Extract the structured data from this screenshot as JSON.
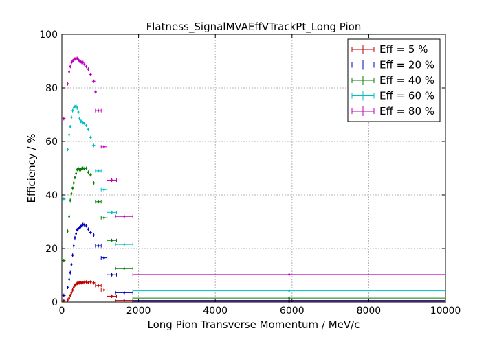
{
  "chart_data": {
    "type": "scatter",
    "title": "Flatness_SignalMVAEffVTrackPt_Long Pion",
    "xlabel": "Long Pion Transverse Momentum / MeV/c",
    "ylabel": "Efficiency / %",
    "xlim": [
      0,
      10000
    ],
    "ylim": [
      0,
      100
    ],
    "xticks": [
      "0",
      "2000",
      "4000",
      "6000",
      "8000",
      "10000"
    ],
    "yticks": [
      "0",
      "20",
      "40",
      "60",
      "80",
      "100"
    ],
    "grid": true,
    "legend_position": "top-right",
    "series": [
      {
        "name": "Eff = 5 %",
        "color": "#bf0000",
        "points": [
          {
            "x": 50,
            "y": 0.5,
            "xerr": 50
          },
          {
            "x": 150,
            "y": 0.8,
            "xerr": 25
          },
          {
            "x": 190,
            "y": 1.5,
            "xerr": 15
          },
          {
            "x": 220,
            "y": 2.5,
            "xerr": 15
          },
          {
            "x": 250,
            "y": 3.5,
            "xerr": 15
          },
          {
            "x": 280,
            "y": 4.5,
            "xerr": 15
          },
          {
            "x": 310,
            "y": 5.5,
            "xerr": 15
          },
          {
            "x": 340,
            "y": 6.3,
            "xerr": 15
          },
          {
            "x": 370,
            "y": 6.8,
            "xerr": 15
          },
          {
            "x": 400,
            "y": 7.0,
            "xerr": 15
          },
          {
            "x": 430,
            "y": 7.2,
            "xerr": 15
          },
          {
            "x": 460,
            "y": 7.2,
            "xerr": 15
          },
          {
            "x": 490,
            "y": 7.3,
            "xerr": 15
          },
          {
            "x": 520,
            "y": 7.2,
            "xerr": 15
          },
          {
            "x": 550,
            "y": 7.3,
            "xerr": 15
          },
          {
            "x": 590,
            "y": 7.4,
            "xerr": 25
          },
          {
            "x": 640,
            "y": 7.5,
            "xerr": 25
          },
          {
            "x": 690,
            "y": 7.3,
            "xerr": 25
          },
          {
            "x": 750,
            "y": 7.5,
            "xerr": 35
          },
          {
            "x": 830,
            "y": 7.2,
            "xerr": 45
          },
          {
            "x": 950,
            "y": 6.2,
            "xerr": 75
          },
          {
            "x": 1100,
            "y": 4.5,
            "xerr": 75
          },
          {
            "x": 1300,
            "y": 2.2,
            "xerr": 125
          },
          {
            "x": 1625,
            "y": 0.6,
            "xerr": 225
          },
          {
            "x": 5925,
            "y": 0.1,
            "xerr": 4075
          }
        ]
      },
      {
        "name": "Eff = 20 %",
        "color": "#0000bf",
        "points": [
          {
            "x": 50,
            "y": 2.5,
            "xerr": 50
          },
          {
            "x": 150,
            "y": 5.5,
            "xerr": 25
          },
          {
            "x": 190,
            "y": 8.5,
            "xerr": 15
          },
          {
            "x": 220,
            "y": 11,
            "xerr": 15
          },
          {
            "x": 250,
            "y": 14,
            "xerr": 15
          },
          {
            "x": 280,
            "y": 17.5,
            "xerr": 15
          },
          {
            "x": 310,
            "y": 21,
            "xerr": 15
          },
          {
            "x": 340,
            "y": 24,
            "xerr": 15
          },
          {
            "x": 370,
            "y": 25.5,
            "xerr": 15
          },
          {
            "x": 400,
            "y": 27,
            "xerr": 15
          },
          {
            "x": 430,
            "y": 27.5,
            "xerr": 15
          },
          {
            "x": 460,
            "y": 27.8,
            "xerr": 15
          },
          {
            "x": 490,
            "y": 28.2,
            "xerr": 15
          },
          {
            "x": 520,
            "y": 28.5,
            "xerr": 15
          },
          {
            "x": 550,
            "y": 29.0,
            "xerr": 15
          },
          {
            "x": 590,
            "y": 28.8,
            "xerr": 25
          },
          {
            "x": 640,
            "y": 28.5,
            "xerr": 25
          },
          {
            "x": 690,
            "y": 27.2,
            "xerr": 25
          },
          {
            "x": 750,
            "y": 26.0,
            "xerr": 35
          },
          {
            "x": 830,
            "y": 25.0,
            "xerr": 45
          },
          {
            "x": 950,
            "y": 21.0,
            "xerr": 75
          },
          {
            "x": 1100,
            "y": 16.5,
            "xerr": 75
          },
          {
            "x": 1300,
            "y": 10.2,
            "xerr": 125
          },
          {
            "x": 1625,
            "y": 3.5,
            "xerr": 225
          },
          {
            "x": 5925,
            "y": 0.6,
            "xerr": 4075
          }
        ]
      },
      {
        "name": "Eff = 40 %",
        "color": "#007f00",
        "points": [
          {
            "x": 50,
            "y": 15.5,
            "xerr": 50
          },
          {
            "x": 150,
            "y": 26.5,
            "xerr": 25
          },
          {
            "x": 190,
            "y": 32,
            "xerr": 15
          },
          {
            "x": 220,
            "y": 38,
            "xerr": 15
          },
          {
            "x": 250,
            "y": 40.5,
            "xerr": 15
          },
          {
            "x": 280,
            "y": 42.5,
            "xerr": 15
          },
          {
            "x": 310,
            "y": 44.5,
            "xerr": 15
          },
          {
            "x": 340,
            "y": 46.5,
            "xerr": 15
          },
          {
            "x": 370,
            "y": 48,
            "xerr": 15
          },
          {
            "x": 400,
            "y": 49.5,
            "xerr": 15
          },
          {
            "x": 430,
            "y": 49.8,
            "xerr": 15
          },
          {
            "x": 460,
            "y": 49.5,
            "xerr": 15
          },
          {
            "x": 490,
            "y": 49.5,
            "xerr": 15
          },
          {
            "x": 520,
            "y": 49.8,
            "xerr": 15
          },
          {
            "x": 550,
            "y": 50.0,
            "xerr": 15
          },
          {
            "x": 590,
            "y": 49.8,
            "xerr": 25
          },
          {
            "x": 640,
            "y": 50.0,
            "xerr": 25
          },
          {
            "x": 690,
            "y": 48.5,
            "xerr": 25
          },
          {
            "x": 750,
            "y": 47.5,
            "xerr": 35
          },
          {
            "x": 830,
            "y": 44.5,
            "xerr": 45
          },
          {
            "x": 950,
            "y": 37.5,
            "xerr": 75
          },
          {
            "x": 1100,
            "y": 31.5,
            "xerr": 75
          },
          {
            "x": 1300,
            "y": 23.0,
            "xerr": 125
          },
          {
            "x": 1625,
            "y": 12.5,
            "xerr": 225
          },
          {
            "x": 5925,
            "y": 1.5,
            "xerr": 4075
          }
        ]
      },
      {
        "name": "Eff = 60 %",
        "color": "#00bfbf",
        "points": [
          {
            "x": 50,
            "y": 38.5,
            "xerr": 50
          },
          {
            "x": 150,
            "y": 57,
            "xerr": 25
          },
          {
            "x": 190,
            "y": 62.5,
            "xerr": 15
          },
          {
            "x": 220,
            "y": 65.5,
            "xerr": 15
          },
          {
            "x": 250,
            "y": 69,
            "xerr": 15
          },
          {
            "x": 280,
            "y": 71.5,
            "xerr": 15
          },
          {
            "x": 310,
            "y": 72.5,
            "xerr": 15
          },
          {
            "x": 340,
            "y": 73,
            "xerr": 15
          },
          {
            "x": 370,
            "y": 73.2,
            "xerr": 15
          },
          {
            "x": 400,
            "y": 72.5,
            "xerr": 15
          },
          {
            "x": 430,
            "y": 71,
            "xerr": 15
          },
          {
            "x": 460,
            "y": 68.5,
            "xerr": 15
          },
          {
            "x": 490,
            "y": 67.5,
            "xerr": 15
          },
          {
            "x": 520,
            "y": 67.5,
            "xerr": 15
          },
          {
            "x": 550,
            "y": 67.0,
            "xerr": 15
          },
          {
            "x": 590,
            "y": 66.8,
            "xerr": 25
          },
          {
            "x": 640,
            "y": 66.0,
            "xerr": 25
          },
          {
            "x": 690,
            "y": 64.5,
            "xerr": 25
          },
          {
            "x": 750,
            "y": 61.5,
            "xerr": 35
          },
          {
            "x": 830,
            "y": 58.5,
            "xerr": 45
          },
          {
            "x": 950,
            "y": 49.0,
            "xerr": 75
          },
          {
            "x": 1100,
            "y": 42.0,
            "xerr": 75
          },
          {
            "x": 1300,
            "y": 33.5,
            "xerr": 125
          },
          {
            "x": 1625,
            "y": 21.5,
            "xerr": 225
          },
          {
            "x": 5925,
            "y": 4.2,
            "xerr": 4075
          }
        ]
      },
      {
        "name": "Eff = 80 %",
        "color": "#bf00bf",
        "points": [
          {
            "x": 50,
            "y": 68.5,
            "xerr": 50
          },
          {
            "x": 150,
            "y": 81.5,
            "xerr": 25
          },
          {
            "x": 190,
            "y": 86,
            "xerr": 15
          },
          {
            "x": 220,
            "y": 88,
            "xerr": 15
          },
          {
            "x": 250,
            "y": 89.5,
            "xerr": 15
          },
          {
            "x": 280,
            "y": 90,
            "xerr": 15
          },
          {
            "x": 310,
            "y": 90.5,
            "xerr": 15
          },
          {
            "x": 340,
            "y": 90.8,
            "xerr": 15
          },
          {
            "x": 370,
            "y": 91,
            "xerr": 15
          },
          {
            "x": 400,
            "y": 91,
            "xerr": 15
          },
          {
            "x": 430,
            "y": 90.5,
            "xerr": 15
          },
          {
            "x": 460,
            "y": 90,
            "xerr": 15
          },
          {
            "x": 490,
            "y": 89.8,
            "xerr": 15
          },
          {
            "x": 520,
            "y": 89.5,
            "xerr": 15
          },
          {
            "x": 550,
            "y": 89.5,
            "xerr": 15
          },
          {
            "x": 590,
            "y": 88.8,
            "xerr": 25
          },
          {
            "x": 640,
            "y": 88.0,
            "xerr": 25
          },
          {
            "x": 690,
            "y": 87.0,
            "xerr": 25
          },
          {
            "x": 750,
            "y": 85.0,
            "xerr": 35
          },
          {
            "x": 830,
            "y": 82.5,
            "xerr": 45
          },
          {
            "x": 880,
            "y": 78.5,
            "xerr": 35
          },
          {
            "x": 950,
            "y": 71.5,
            "xerr": 75
          },
          {
            "x": 1100,
            "y": 58.0,
            "xerr": 75
          },
          {
            "x": 1300,
            "y": 45.5,
            "xerr": 125
          },
          {
            "x": 1625,
            "y": 32.0,
            "xerr": 225
          },
          {
            "x": 5925,
            "y": 10.3,
            "xerr": 4075
          }
        ]
      }
    ]
  }
}
